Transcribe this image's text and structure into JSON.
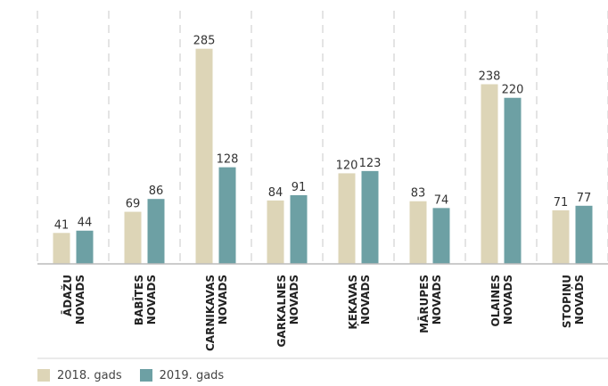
{
  "chart_data": {
    "type": "bar",
    "title": "",
    "xlabel": "",
    "ylabel": "",
    "categories": [
      [
        "ĀDAŽU",
        "NOVADS"
      ],
      [
        "BABĪTES",
        "NOVADS"
      ],
      [
        "CARNIKAVAS",
        "NOVADS"
      ],
      [
        "GARKALNES",
        "NOVADS"
      ],
      [
        "ĶEKAVAS",
        "NOVADS"
      ],
      [
        "MĀRUPES",
        "NOVADS"
      ],
      [
        "OLAINES",
        "NOVADS"
      ],
      [
        "STOPIŅU",
        "NOVADS"
      ]
    ],
    "series": [
      {
        "name": "2018. gads",
        "color": "#ddd5b7",
        "values": [
          41,
          69,
          285,
          84,
          120,
          83,
          238,
          71
        ]
      },
      {
        "name": "2019. gads",
        "color": "#6da0a4",
        "values": [
          44,
          86,
          128,
          91,
          123,
          74,
          220,
          77
        ]
      }
    ],
    "ylim": [
      0,
      300
    ],
    "grid": "vertical-dashed-separators",
    "legend_position": "bottom-left"
  }
}
